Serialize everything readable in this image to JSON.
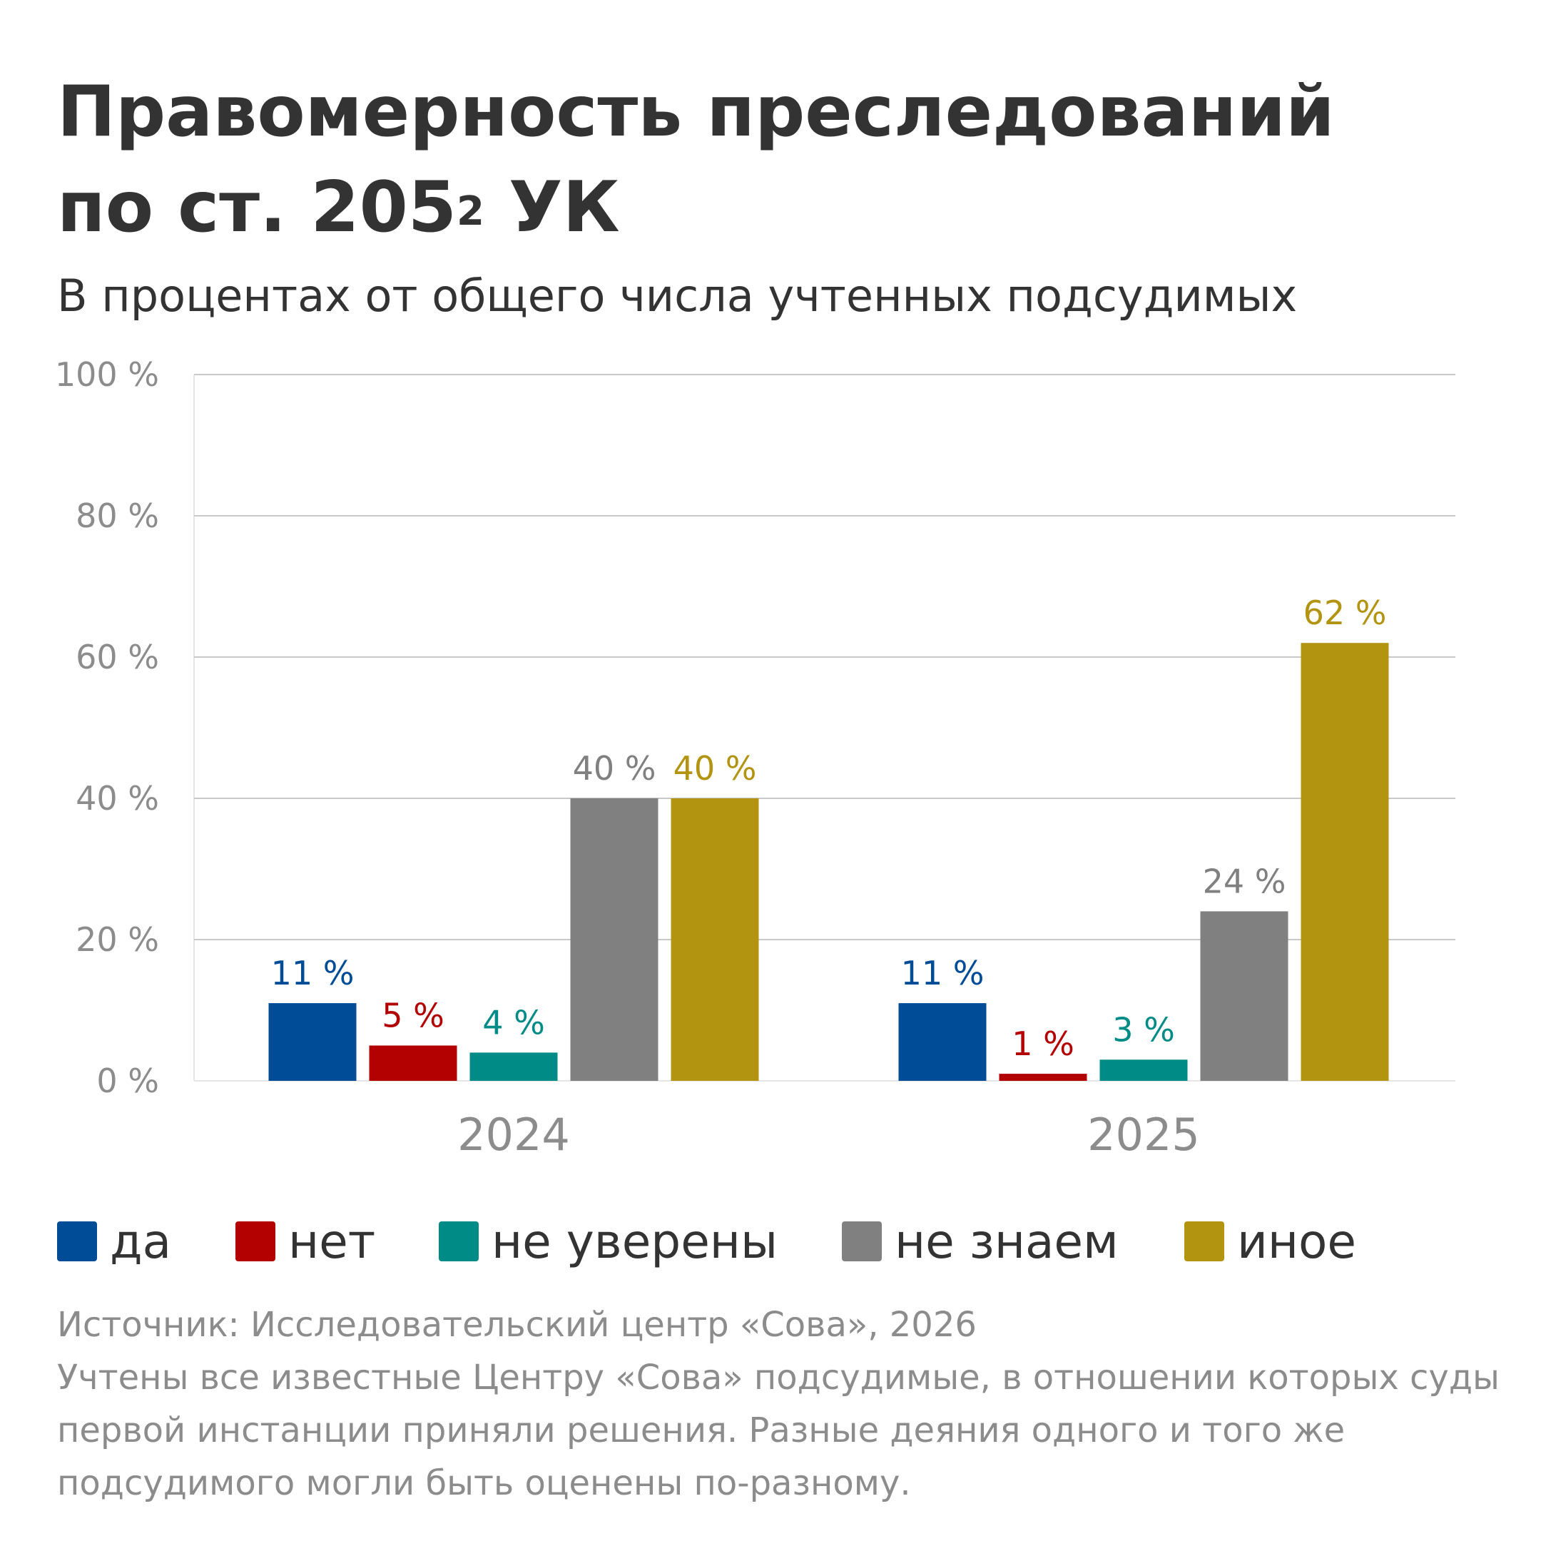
{
  "title": {
    "line1": "Правомерность преследований",
    "line2_prefix": "по ст. 205",
    "line2_sup": "2",
    "line2_suffix": " УК"
  },
  "subtitle": "В процентах от общего числа учтенных подсудимых",
  "chart_data": {
    "type": "bar",
    "categories": [
      "2024",
      "2025"
    ],
    "ylim": [
      0,
      100
    ],
    "yticks": [
      0,
      20,
      40,
      60,
      80,
      100
    ],
    "ytick_labels": [
      "0 %",
      "20 %",
      "40 %",
      "60 %",
      "80 %",
      "100 %"
    ],
    "grid": true,
    "legend_position": "bottom",
    "series": [
      {
        "name": "да",
        "color": "#004c97",
        "values": [
          11,
          11
        ],
        "labels": [
          "11 %",
          "11 %"
        ]
      },
      {
        "name": "нет",
        "color": "#b30000",
        "values": [
          5,
          1
        ],
        "labels": [
          "5 %",
          "1 %"
        ]
      },
      {
        "name": "не уверены",
        "color": "#008b87",
        "values": [
          4,
          3
        ],
        "labels": [
          "4 %",
          "3 %"
        ]
      },
      {
        "name": "не знаем",
        "color": "#808080",
        "values": [
          40,
          24
        ],
        "labels": [
          "40 %",
          "24 %"
        ]
      },
      {
        "name": "иное",
        "color": "#b39410",
        "values": [
          40,
          62
        ],
        "labels": [
          "40 %",
          "62 %"
        ]
      }
    ]
  },
  "legend": [
    "да",
    "нет",
    "не уверены",
    "не знаем",
    "иное"
  ],
  "source": {
    "line1": "Источник: Исследовательский центр «Сова», 2026",
    "line2": "Учтены все известные Центру «Сова» подсудимые, в отношении которых суды",
    "line3": "первой инстанции приняли решения. Разные деяния одного и того же",
    "line4": "подсудимого могли быть оценены по-разному."
  }
}
